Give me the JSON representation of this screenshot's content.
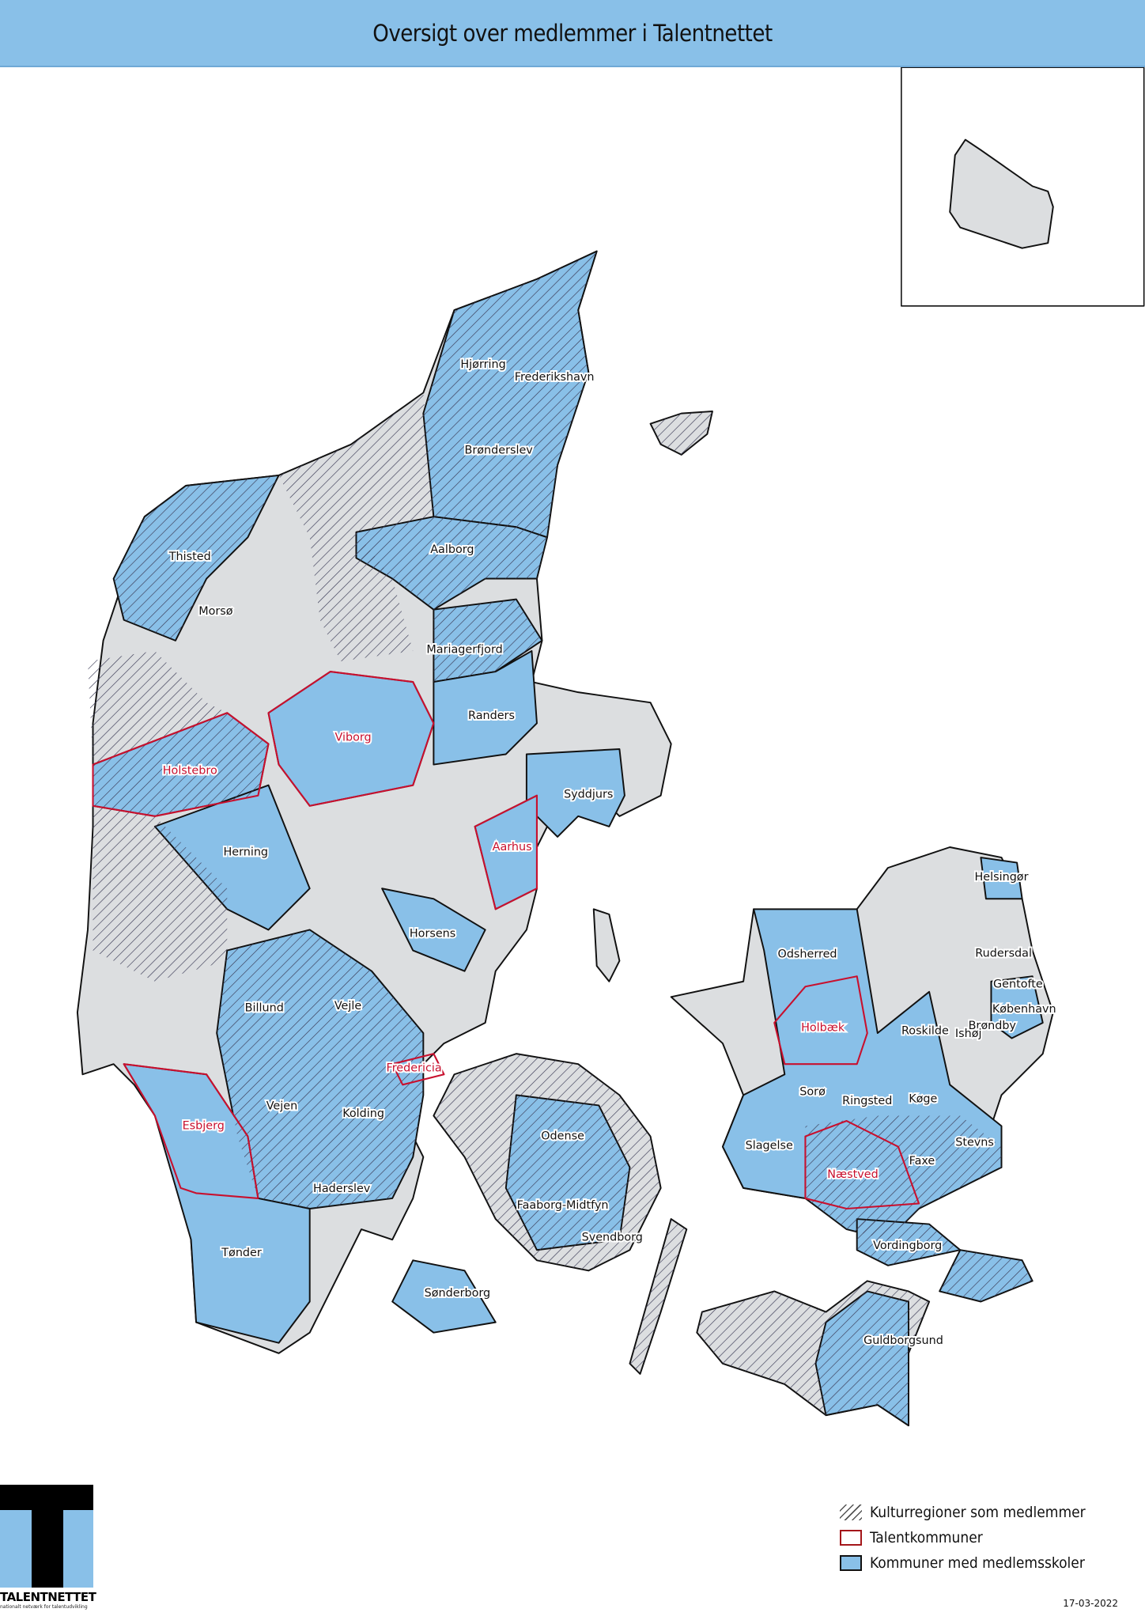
{
  "header": {
    "title": "Oversigt over medlemmer i Talentnettet"
  },
  "colors": {
    "header": "#89c0e8",
    "member_schools": "#89c0e8",
    "other": "#dcdee0",
    "talent_outline": "#c8102e"
  },
  "legend": [
    {
      "symbol": "hatch",
      "label": "Kulturregioner som medlemmer"
    },
    {
      "symbol": "red-outline",
      "label": "Talentkommuner"
    },
    {
      "symbol": "blue-fill",
      "label": "Kommuner med medlemsskoler"
    }
  ],
  "labels": [
    {
      "name": "Hjørring",
      "talent": false
    },
    {
      "name": "Frederikshavn",
      "talent": false
    },
    {
      "name": "Brønderslev",
      "talent": false
    },
    {
      "name": "Aalborg",
      "talent": false
    },
    {
      "name": "Thisted",
      "talent": false
    },
    {
      "name": "Morsø",
      "talent": false
    },
    {
      "name": "Mariagerfjord",
      "talent": false
    },
    {
      "name": "Randers",
      "talent": false
    },
    {
      "name": "Viborg",
      "talent": true
    },
    {
      "name": "Holstebro",
      "talent": true
    },
    {
      "name": "Syddjurs",
      "talent": false
    },
    {
      "name": "Herning",
      "talent": false
    },
    {
      "name": "Aarhus",
      "talent": true
    },
    {
      "name": "Horsens",
      "talent": false
    },
    {
      "name": "Odsherred",
      "talent": false
    },
    {
      "name": "Helsingør",
      "talent": false
    },
    {
      "name": "Rudersdal",
      "talent": false
    },
    {
      "name": "Gentofte",
      "talent": false
    },
    {
      "name": "København",
      "talent": false
    },
    {
      "name": "Brøndby",
      "talent": false
    },
    {
      "name": "Ishøj",
      "talent": false
    },
    {
      "name": "Roskilde",
      "talent": false
    },
    {
      "name": "Holbæk",
      "talent": true
    },
    {
      "name": "Billund",
      "talent": false
    },
    {
      "name": "Vejle",
      "talent": false
    },
    {
      "name": "Fredericia",
      "talent": true
    },
    {
      "name": "Sorø",
      "talent": false
    },
    {
      "name": "Ringsted",
      "talent": false
    },
    {
      "name": "Køge",
      "talent": false
    },
    {
      "name": "Vejen",
      "talent": false
    },
    {
      "name": "Kolding",
      "talent": false
    },
    {
      "name": "Esbjerg",
      "talent": true
    },
    {
      "name": "Odense",
      "talent": false
    },
    {
      "name": "Slagelse",
      "talent": false
    },
    {
      "name": "Stevns",
      "talent": false
    },
    {
      "name": "Faxe",
      "talent": false
    },
    {
      "name": "Næstved",
      "talent": true
    },
    {
      "name": "Haderslev",
      "talent": false
    },
    {
      "name": "Faaborg-Midtfyn",
      "talent": false
    },
    {
      "name": "Svendborg",
      "talent": false
    },
    {
      "name": "Vordingborg",
      "talent": false
    },
    {
      "name": "Tønder",
      "talent": false
    },
    {
      "name": "Sønderborg",
      "talent": false
    },
    {
      "name": "Guldborgsund",
      "talent": false
    }
  ],
  "logo": {
    "name": "TALENTNETTET",
    "tagline": "nationalt netværk for talentudvikling"
  },
  "date": "17-03-2022"
}
